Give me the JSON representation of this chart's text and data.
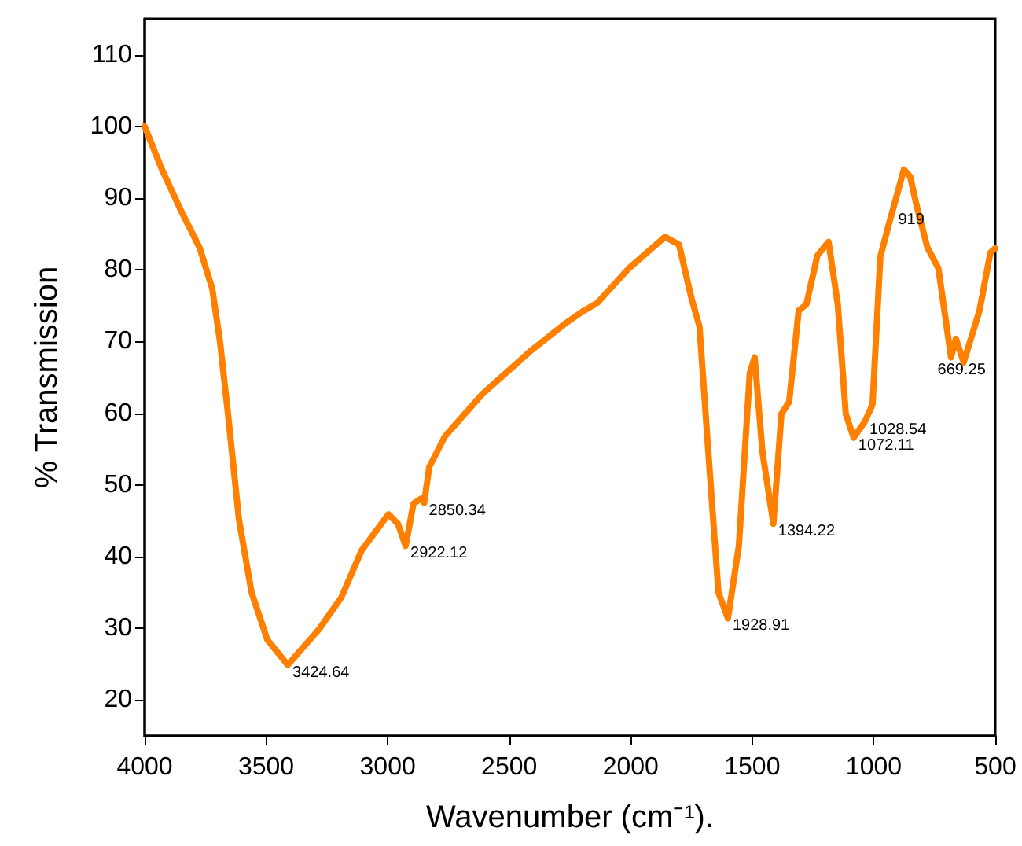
{
  "chart_data": {
    "type": "line",
    "xlabel": "Wavenumber (cm⁻¹).",
    "ylabel": "% Transmission",
    "xlim": [
      4000,
      500
    ],
    "ylim": [
      15,
      115
    ],
    "xticks": [
      4000,
      3500,
      3000,
      2500,
      2000,
      1500,
      1000,
      500
    ],
    "yticks": [
      20,
      30,
      40,
      50,
      60,
      70,
      80,
      90,
      100,
      110
    ],
    "grid": false,
    "marker": "none",
    "line_style": "solid",
    "series": [
      {
        "color": "#ff8000",
        "x": [
          4000,
          3929,
          3851,
          3774,
          3722,
          3690,
          3657,
          3612,
          3560,
          3495,
          3411,
          3282,
          3191,
          3107,
          2997,
          2958,
          2926,
          2894,
          2862,
          2850,
          2829,
          2764,
          2610,
          2415,
          2266,
          2202,
          2137,
          2008,
          1859,
          1801,
          1749,
          1717,
          1684,
          1639,
          1600,
          1555,
          1510,
          1490,
          1458,
          1413,
          1380,
          1348,
          1309,
          1277,
          1232,
          1186,
          1148,
          1115,
          1083,
          1037,
          1005,
          973,
          940,
          900,
          876,
          850,
          824,
          779,
          734,
          682,
          662,
          630,
          565,
          520,
          500
        ],
        "values": [
          100,
          94,
          88.3,
          83.1,
          77.4,
          70,
          59.9,
          45.2,
          35,
          28.4,
          24.9,
          29.9,
          34.3,
          40.9,
          45.9,
          44.6,
          41.5,
          47.4,
          48.1,
          47.5,
          52.5,
          56.8,
          62.7,
          68.6,
          72.6,
          74.1,
          75.4,
          80.2,
          84.6,
          83.5,
          75.9,
          72.1,
          56.2,
          35,
          31.4,
          41.5,
          65.6,
          67.8,
          54.6,
          44.6,
          59.9,
          61.6,
          74.3,
          75.2,
          82,
          83.9,
          75.2,
          59.9,
          56.6,
          58.8,
          61.2,
          81.8,
          86.1,
          91,
          94,
          93,
          89,
          83.1,
          80.2,
          67.8,
          70.4,
          67.1,
          74.3,
          82.4,
          83
        ]
      }
    ],
    "annotations": [
      {
        "text": "3424.64",
        "x": 3411,
        "y": 24.9
      },
      {
        "text": "2922.12",
        "x": 2926,
        "y": 41.5
      },
      {
        "text": "2850.34",
        "x": 2850,
        "y": 47.5
      },
      {
        "text": "1928.91",
        "x": 1600,
        "y": 31.4
      },
      {
        "text": "1394.22",
        "x": 1413,
        "y": 44.6
      },
      {
        "text": "1072.11",
        "x": 1083,
        "y": 56.6
      },
      {
        "text": "1028.54",
        "x": 1037,
        "y": 58.8
      },
      {
        "text": "919",
        "x": 919,
        "y": 88
      },
      {
        "text": "669.25",
        "x": 630,
        "y": 67.1
      }
    ]
  }
}
